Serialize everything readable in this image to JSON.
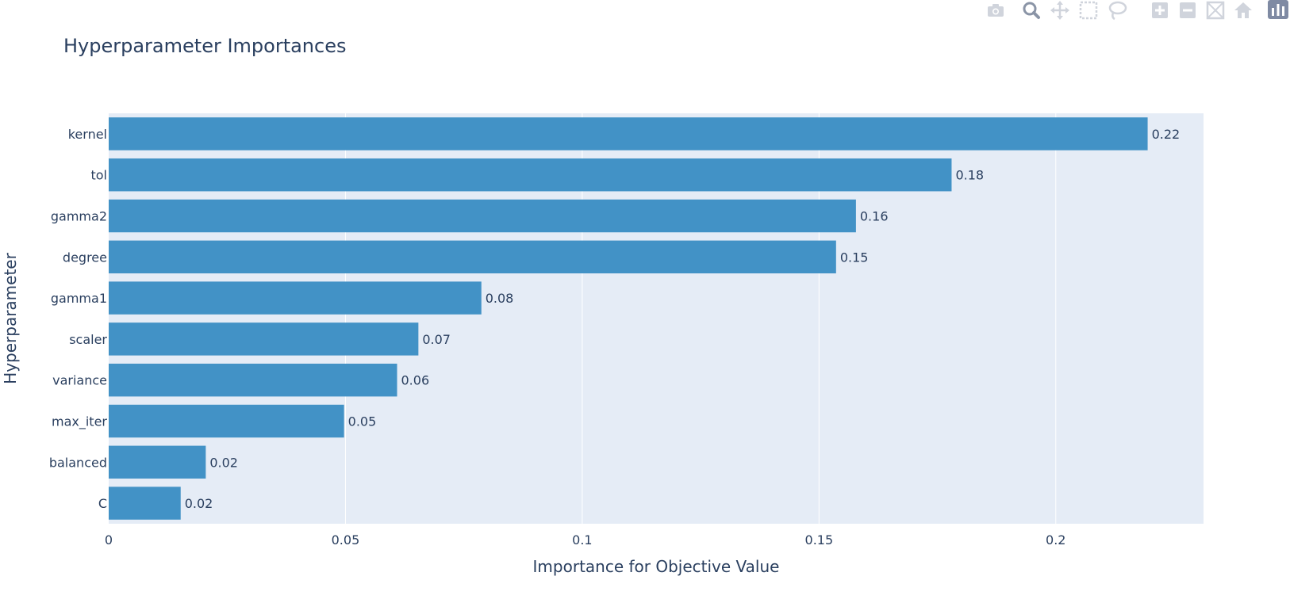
{
  "chart_data": {
    "type": "bar",
    "orientation": "horizontal",
    "title": "Hyperparameter Importances",
    "xlabel": "Importance for Objective Value",
    "ylabel": "Hyperparameter",
    "categories": [
      "C",
      "balanced",
      "max_iter",
      "variance",
      "scaler",
      "gamma1",
      "degree",
      "gamma2",
      "tol",
      "kernel"
    ],
    "values": [
      0.0152,
      0.0205,
      0.0497,
      0.0609,
      0.0654,
      0.0787,
      0.1536,
      0.1578,
      0.178,
      0.2194
    ],
    "data_labels": [
      "0.02",
      "0.02",
      "0.05",
      "0.06",
      "0.07",
      "0.08",
      "0.15",
      "0.16",
      "0.18",
      "0.22"
    ],
    "xlim": [
      0,
      0.2312
    ],
    "xticks": [
      0,
      0.05,
      0.1,
      0.15,
      0.2
    ],
    "xtick_labels": [
      "0",
      "0.05",
      "0.1",
      "0.15",
      "0.2"
    ],
    "grid": true,
    "legend": "none",
    "colors": {
      "bar": "#4292c6",
      "plot_bg": "#e5ecf6",
      "grid": "#ffffff",
      "text": "#2a3f5f"
    }
  },
  "modebar": {
    "buttons": [
      {
        "name": "camera-icon",
        "title": "Download plot as a png"
      },
      {
        "name": "zoom-icon",
        "title": "Zoom"
      },
      {
        "name": "pan-icon",
        "title": "Pan"
      },
      {
        "name": "box-select-icon",
        "title": "Box Select"
      },
      {
        "name": "lasso-select-icon",
        "title": "Lasso Select"
      },
      {
        "name": "zoom-in-icon",
        "title": "Zoom in"
      },
      {
        "name": "zoom-out-icon",
        "title": "Zoom out"
      },
      {
        "name": "autoscale-icon",
        "title": "Autoscale"
      },
      {
        "name": "reset-axes-icon",
        "title": "Reset axes"
      },
      {
        "name": "plotly-logo-icon",
        "title": "Produced with Plotly"
      }
    ]
  }
}
